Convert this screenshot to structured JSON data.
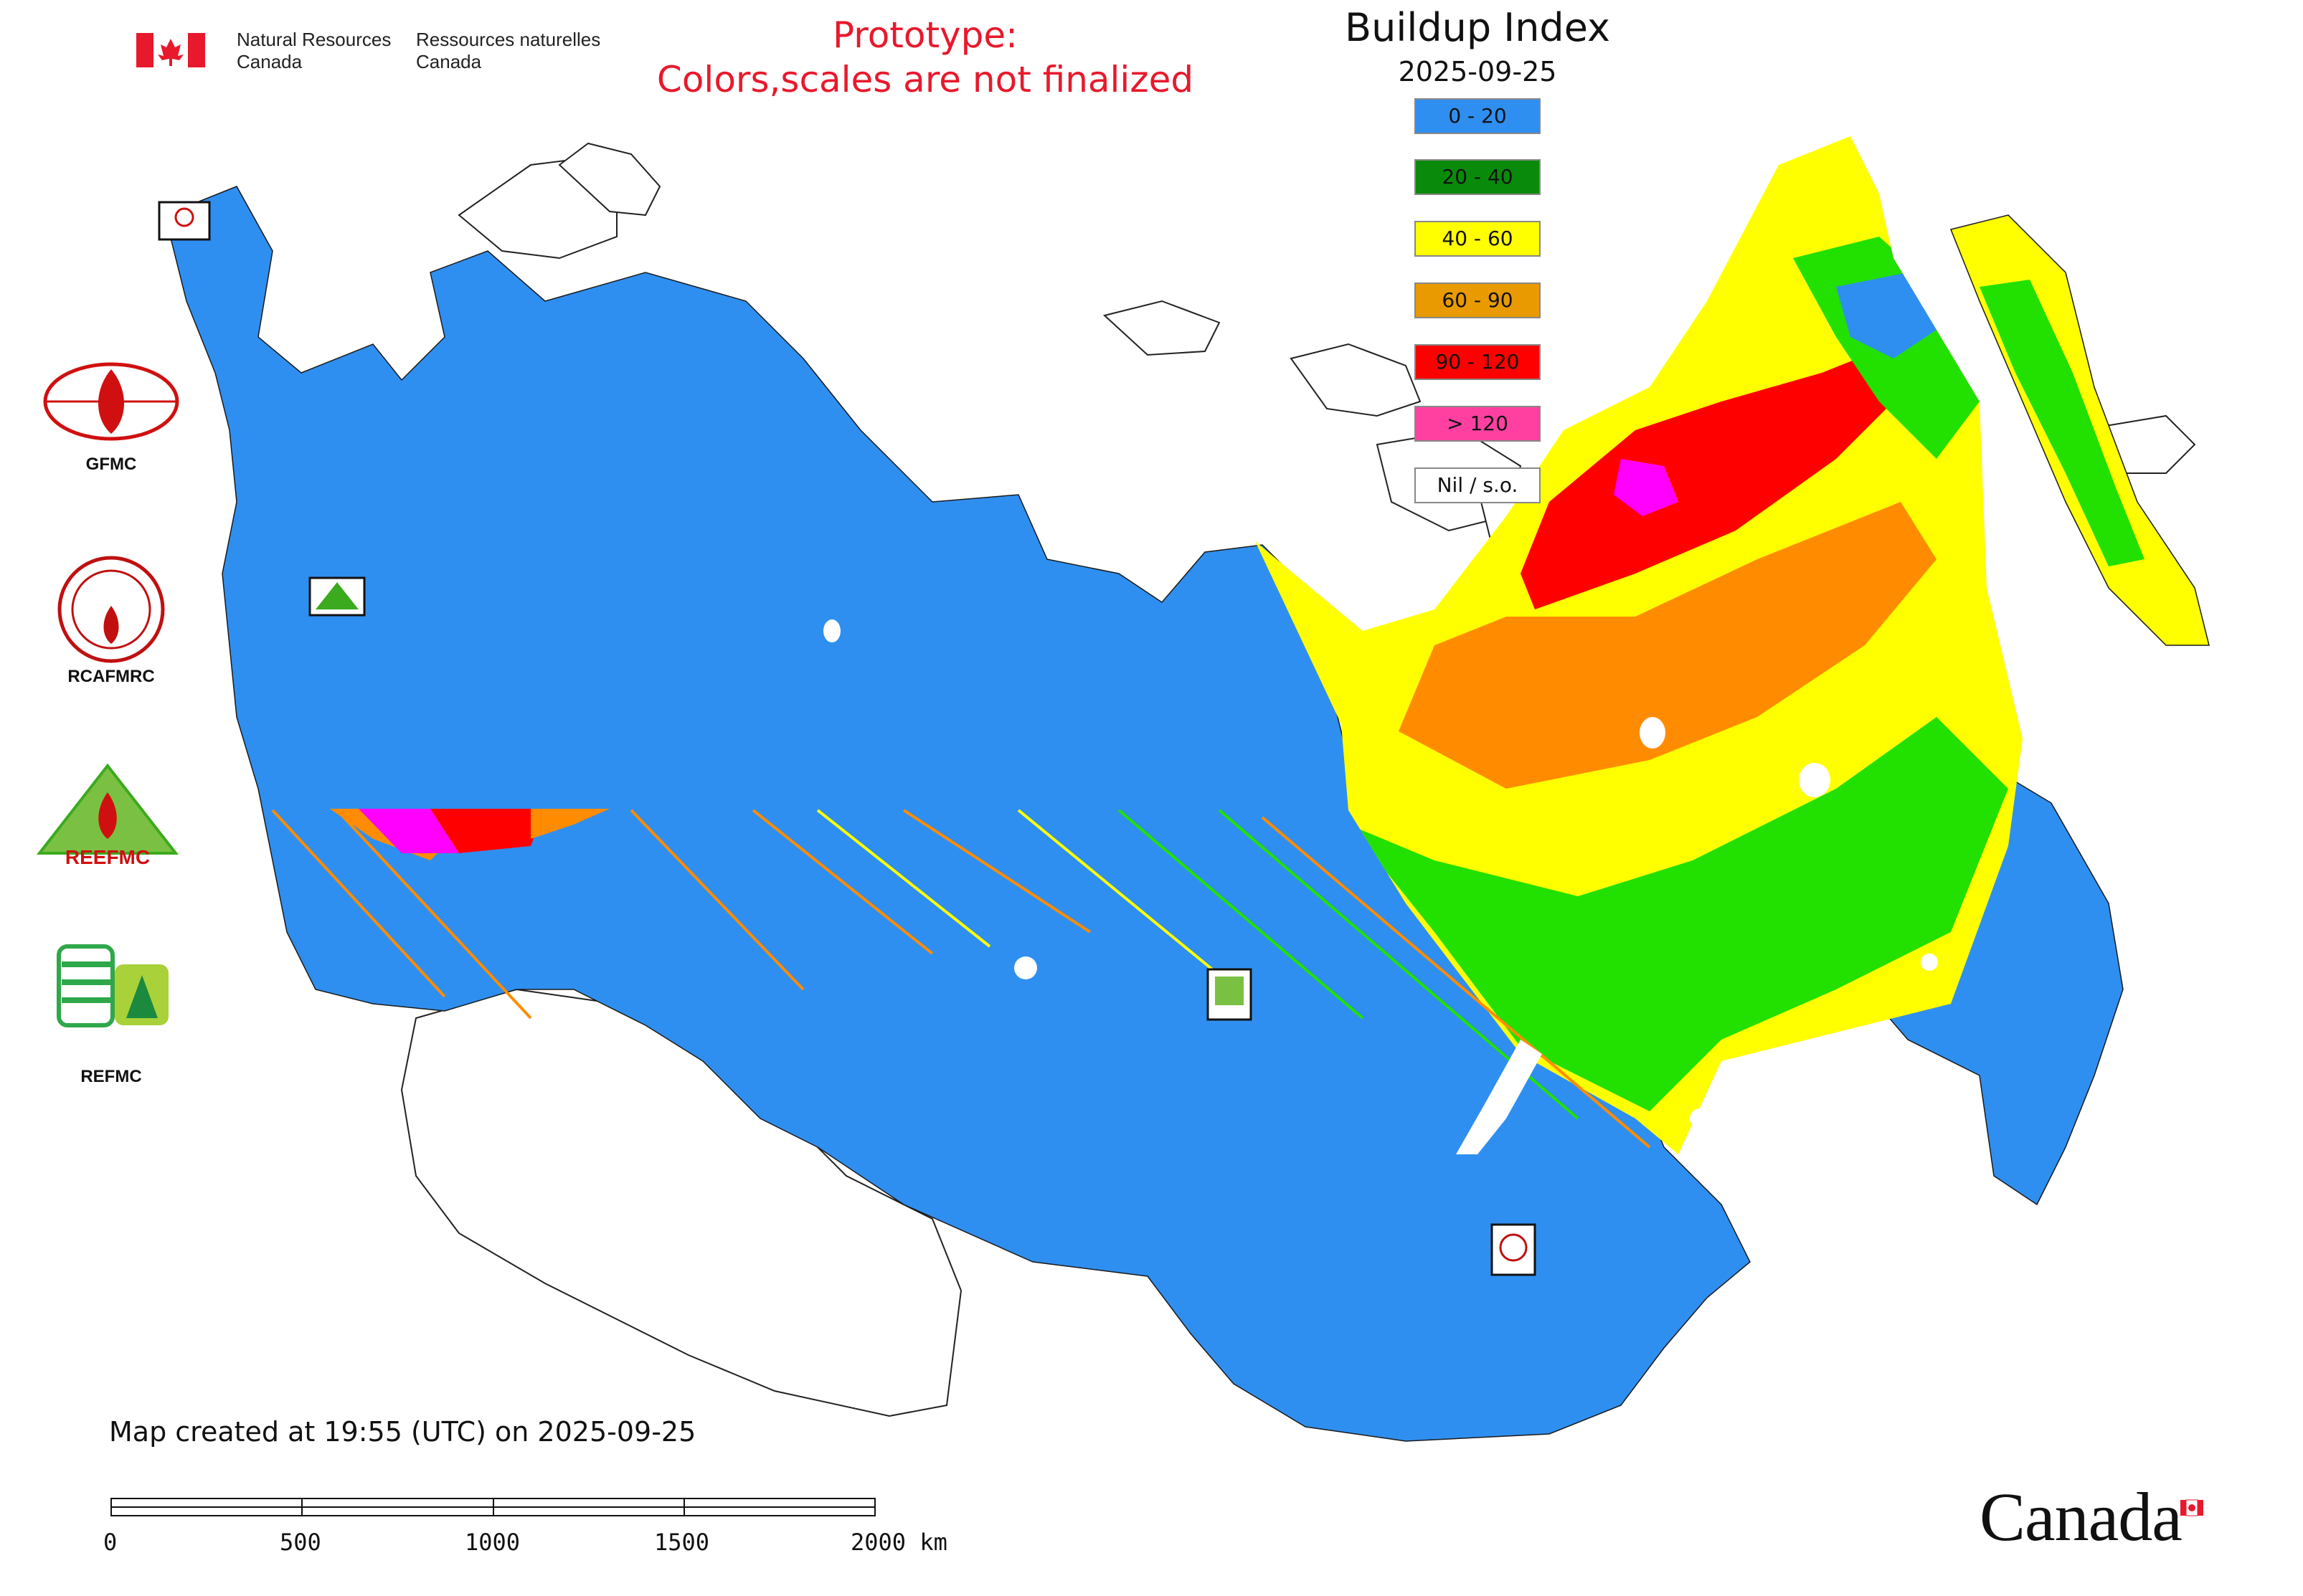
{
  "header": {
    "agency_en": [
      "Natural Resources",
      "Canada"
    ],
    "agency_fr": [
      "Ressources naturelles",
      "Canada"
    ],
    "prototype_notice": [
      "Prototype:",
      "Colors,scales are not finalized"
    ]
  },
  "map": {
    "title": "Buildup Index",
    "date": "2025-09-25",
    "created_note": "Map created at 19:55 (UTC) on 2025-09-25",
    "wordmark": "Canada"
  },
  "legend": [
    {
      "label": "0 - 20",
      "color": "#2f8ff0"
    },
    {
      "label": "20 - 40",
      "color": "#0a8a0a"
    },
    {
      "label": "40 - 60",
      "color": "#ffff00"
    },
    {
      "label": "60 - 90",
      "color": "#e89a00"
    },
    {
      "label": "90 - 120",
      "color": "#ff0000"
    },
    {
      "label": "> 120",
      "color": "#ff40a0"
    },
    {
      "label": "Nil / s.o.",
      "color": "#ffffff"
    }
  ],
  "logos": [
    {
      "label": "GFMC",
      "icon": "gfmc-logo-icon"
    },
    {
      "label": "RCAFMRC",
      "icon": "rcafmrc-logo-icon"
    },
    {
      "label": "REEFMC",
      "icon": "reefmc-logo-icon"
    },
    {
      "label": "REFMC",
      "icon": "refmc-logo-icon"
    }
  ],
  "scale_bar": {
    "ticks": [
      "0",
      "500",
      "1000",
      "1500",
      "2000 km"
    ],
    "unit": "km"
  },
  "colors": {
    "notice": "#e8192c",
    "land_default": "#2f8ff0",
    "bright_green": "#22e000",
    "orange": "#ff8c00",
    "magenta": "#ff00ff",
    "flag_red": "#e8192c"
  }
}
